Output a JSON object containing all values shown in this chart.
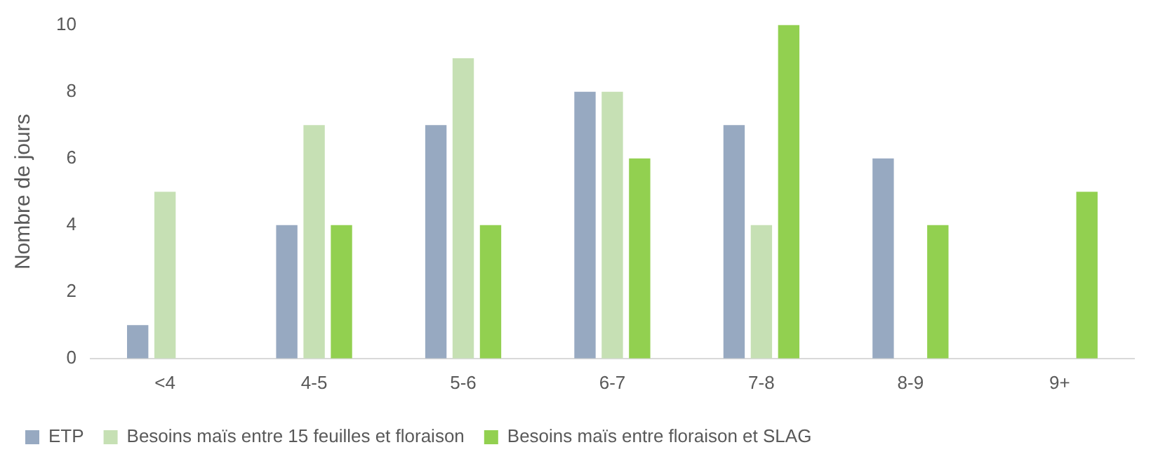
{
  "chart_data": {
    "type": "bar",
    "ylabel": "Nombre de jours",
    "categories": [
      "<4",
      "4-5",
      "5-6",
      "6-7",
      "7-8",
      "8-9",
      "9+"
    ],
    "series": [
      {
        "name": "ETP",
        "color": "#97a9c1",
        "values": [
          1,
          4,
          7,
          8,
          7,
          6,
          0
        ]
      },
      {
        "name": "Besoins maïs entre 15 feuilles et floraison",
        "color": "#c6e0b4",
        "values": [
          5,
          7,
          9,
          8,
          4,
          0,
          0
        ]
      },
      {
        "name": "Besoins maïs entre floraison et SLAG",
        "color": "#92d050",
        "values": [
          0,
          4,
          4,
          6,
          10,
          4,
          5
        ]
      }
    ],
    "ylim": [
      0,
      10
    ],
    "yticks": [
      0,
      2,
      4,
      6,
      8,
      10
    ],
    "grid": false,
    "legend": "bottom left"
  }
}
